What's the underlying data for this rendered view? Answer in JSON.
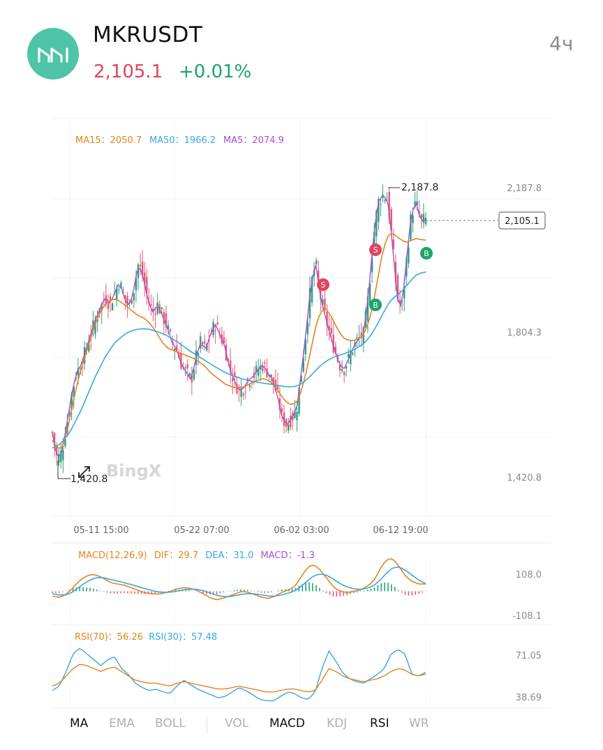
{
  "header": {
    "pair": "MKRUSDT",
    "price": "2,105.1",
    "change": "+0.01%",
    "interval": "4ч",
    "logo_icon": "maker-logo-icon",
    "price_color": "#e0455c",
    "change_color": "#1ea36b"
  },
  "legend": {
    "ma15_label": "MA15：2050.7",
    "ma50_label": "MA50：1966.2",
    "ma5_label": "MA5：2074.9",
    "ma15_color": "#e6821e",
    "ma50_color": "#36a9e1",
    "ma5_color": "#a94fd4"
  },
  "price_axis": {
    "labels": [
      "2,187.8",
      "1,804.3",
      "1,420.8"
    ]
  },
  "current_price_tag": "2,105.1",
  "high_marker": "2,187.8",
  "low_marker": "1,420.8",
  "watermark": "BingX",
  "time_axis": {
    "labels": [
      "05-11 15:00",
      "05-22 07:00",
      "06-02 03:00",
      "06-12 19:00"
    ]
  },
  "signals": [
    {
      "type": "S",
      "color": "#e0455c"
    },
    {
      "type": "S",
      "color": "#e0455c"
    },
    {
      "type": "B",
      "color": "#1ea36b"
    },
    {
      "type": "B",
      "color": "#1ea36b"
    }
  ],
  "macd": {
    "title": "MACD(12,26,9)",
    "dif": "DIF：29.7",
    "dea": "DEA：31.0",
    "macd": "MACD：-1.3",
    "axis": [
      "108.0",
      "-108.1"
    ]
  },
  "rsi": {
    "title_70": "RSI(70)：56.26",
    "title_30": "RSI(30)：57.48",
    "axis": [
      "71.05",
      "38.69"
    ]
  },
  "tabs": [
    {
      "label": "MA",
      "active": true
    },
    {
      "label": "EMA",
      "active": false
    },
    {
      "label": "BOLL",
      "active": false
    },
    {
      "label": "VOL",
      "active": false
    },
    {
      "label": "MACD",
      "active": true
    },
    {
      "label": "KDJ",
      "active": false
    },
    {
      "label": "RSI",
      "active": true
    },
    {
      "label": "WR",
      "active": false
    }
  ],
  "chart_data": [
    {
      "type": "candlestick",
      "title": "",
      "ylim": [
        1420.8,
        2187.8
      ],
      "x_ticks": [
        "05-11 15:00",
        "05-22 07:00",
        "06-02 03:00",
        "06-12 19:00"
      ],
      "close_path": [
        1540,
        1470,
        1490,
        1560,
        1640,
        1700,
        1720,
        1760,
        1800,
        1840,
        1870,
        1900,
        1880,
        1910,
        1940,
        1900,
        1870,
        1920,
        1990,
        1950,
        1890,
        1860,
        1880,
        1850,
        1820,
        1780,
        1760,
        1720,
        1700,
        1680,
        1740,
        1780,
        1760,
        1800,
        1830,
        1800,
        1770,
        1710,
        1680,
        1650,
        1660,
        1680,
        1690,
        1710,
        1720,
        1700,
        1680,
        1640,
        1580,
        1560,
        1580,
        1600,
        1700,
        1810,
        1930,
        1990,
        1900,
        1850,
        1800,
        1760,
        1720,
        1710,
        1740,
        1770,
        1790,
        1800,
        1900,
        2050,
        2150,
        2170,
        2160,
        2050,
        1900,
        1870,
        2000,
        2120,
        2150,
        2100,
        2105.1
      ],
      "ma15_path": [
        1520,
        1500,
        1500,
        1540,
        1600,
        1660,
        1710,
        1750,
        1790,
        1830,
        1860,
        1880,
        1890,
        1895,
        1890,
        1880,
        1870,
        1860,
        1850,
        1845,
        1835,
        1820,
        1800,
        1780,
        1765,
        1760,
        1755,
        1750,
        1745,
        1740,
        1735,
        1725,
        1715,
        1700,
        1690,
        1680,
        1670,
        1665,
        1660,
        1660,
        1662,
        1668,
        1675,
        1680,
        1684,
        1680,
        1670,
        1655,
        1635,
        1620,
        1615,
        1620,
        1650,
        1700,
        1760,
        1820,
        1860,
        1870,
        1855,
        1830,
        1805,
        1790,
        1785,
        1785,
        1790,
        1800,
        1830,
        1880,
        1950,
        2020,
        2060,
        2070,
        2060,
        2050,
        2045,
        2050,
        2055,
        2052,
        2050.7
      ],
      "ma50_path": [
        1500,
        1505,
        1515,
        1530,
        1550,
        1575,
        1600,
        1630,
        1660,
        1690,
        1715,
        1740,
        1760,
        1778,
        1790,
        1800,
        1808,
        1812,
        1815,
        1816,
        1815,
        1812,
        1808,
        1803,
        1797,
        1790,
        1782,
        1773,
        1764,
        1755,
        1747,
        1739,
        1731,
        1723,
        1715,
        1708,
        1701,
        1695,
        1690,
        1686,
        1682,
        1679,
        1676,
        1674,
        1672,
        1670,
        1668,
        1666,
        1664,
        1662,
        1662,
        1664,
        1670,
        1680,
        1692,
        1705,
        1718,
        1728,
        1736,
        1742,
        1746,
        1750,
        1755,
        1760,
        1768,
        1776,
        1790,
        1808,
        1830,
        1855,
        1878,
        1895,
        1905,
        1915,
        1930,
        1945,
        1958,
        1964,
        1966.2
      ]
    },
    {
      "type": "line",
      "title": "MACD(12,26,9)",
      "series": [
        {
          "name": "DIF",
          "values": [
            -20,
            -25,
            -15,
            10,
            40,
            60,
            70,
            65,
            50,
            35,
            30,
            25,
            15,
            5,
            -5,
            -10,
            -12,
            -8,
            0,
            10,
            15,
            12,
            5,
            -10,
            -25,
            -35,
            -30,
            -20,
            -10,
            0,
            -5,
            -15,
            -25,
            -30,
            -20,
            -5,
            5,
            20,
            60,
            100,
            110,
            85,
            50,
            15,
            0,
            -5,
            0,
            5,
            20,
            40,
            90,
            130,
            135,
            100,
            60,
            40,
            30,
            29.7
          ]
        },
        {
          "name": "DEA",
          "values": [
            -10,
            -15,
            -15,
            -5,
            15,
            35,
            50,
            58,
            55,
            48,
            42,
            35,
            28,
            20,
            12,
            5,
            -2,
            -5,
            -4,
            0,
            6,
            8,
            8,
            3,
            -6,
            -16,
            -22,
            -22,
            -18,
            -12,
            -10,
            -11,
            -15,
            -20,
            -20,
            -15,
            -8,
            2,
            20,
            45,
            65,
            72,
            65,
            48,
            30,
            18,
            10,
            8,
            12,
            22,
            45,
            75,
            98,
            100,
            85,
            65,
            45,
            31.0
          ]
        },
        {
          "name": "MACD",
          "values": [
            -10,
            -10,
            0,
            15,
            25,
            25,
            20,
            7,
            -5,
            -13,
            -12,
            -10,
            -13,
            -15,
            -17,
            -15,
            -10,
            -3,
            4,
            10,
            9,
            4,
            -3,
            -13,
            -19,
            -19,
            -8,
            2,
            8,
            12,
            5,
            -4,
            -10,
            -10,
            0,
            10,
            13,
            18,
            40,
            55,
            45,
            13,
            -15,
            -33,
            -30,
            -23,
            -10,
            -3,
            8,
            18,
            45,
            55,
            37,
            0,
            -25,
            -25,
            -15,
            -1.3
          ]
        }
      ],
      "ylim": [
        -108.1,
        108.0
      ]
    },
    {
      "type": "line",
      "title": "RSI",
      "series": [
        {
          "name": "RSI(70)",
          "values": [
            48,
            50,
            55,
            60,
            63,
            62,
            60,
            58,
            60,
            61,
            58,
            55,
            52,
            51,
            50,
            50,
            49,
            48,
            50,
            51,
            50,
            49,
            48,
            47,
            46,
            46,
            47,
            48,
            47,
            46,
            45,
            44,
            44,
            45,
            46,
            46,
            45,
            44,
            45,
            52,
            60,
            58,
            55,
            53,
            52,
            51,
            52,
            53,
            55,
            58,
            60,
            59,
            56,
            55,
            56.26
          ]
        },
        {
          "name": "RSI(30)",
          "values": [
            45,
            48,
            58,
            70,
            74,
            70,
            66,
            62,
            66,
            68,
            60,
            56,
            50,
            47,
            45,
            46,
            44,
            43,
            48,
            52,
            49,
            46,
            44,
            42,
            40,
            41,
            44,
            47,
            45,
            42,
            39,
            38,
            38,
            41,
            44,
            43,
            40,
            39,
            44,
            60,
            72,
            65,
            57,
            53,
            51,
            50,
            53,
            56,
            60,
            70,
            73,
            70,
            56,
            55,
            57.48
          ]
        }
      ],
      "ylim": [
        38.69,
        71.05
      ]
    }
  ]
}
